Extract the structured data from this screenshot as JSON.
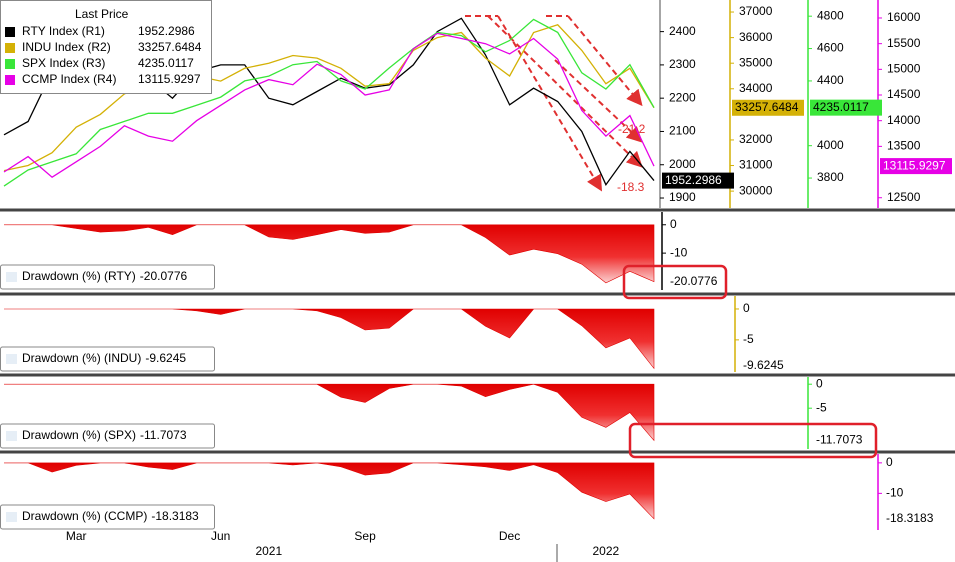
{
  "chart_data": [
    {
      "type": "line",
      "legend_title": "Last Price",
      "categories": [
        null,
        null,
        null,
        "Mar",
        null,
        null,
        null,
        null,
        null,
        "Jun",
        null,
        null,
        null,
        null,
        null,
        "Sep",
        null,
        null,
        null,
        null,
        null,
        "Dec",
        null,
        null,
        null,
        null,
        null,
        null
      ],
      "x_groups": [
        {
          "value": 11,
          "label": "2021"
        },
        {
          "value": 25,
          "label": "2022"
        }
      ],
      "series": [
        {
          "name": "RTY Index (R1)",
          "color": "#000000",
          "axis": "y",
          "values": [
            2090,
            2130,
            2280,
            2250,
            2220,
            2230,
            2260,
            2200,
            2280,
            2300,
            2300,
            2200,
            2180,
            2220,
            2260,
            2230,
            2240,
            2300,
            2400,
            2440,
            2330,
            2180,
            2230,
            2190,
            2100,
            1940,
            2040,
            1952.2986
          ]
        },
        {
          "name": "INDU Index (R2)",
          "color": "#d4b106",
          "axis": "y2",
          "values": [
            30800,
            31000,
            31500,
            32500,
            33000,
            33800,
            34200,
            34600,
            34500,
            34300,
            34800,
            35000,
            35300,
            35200,
            34800,
            34100,
            34200,
            35500,
            36000,
            36200,
            35200,
            34500,
            36200,
            36500,
            35500,
            34200,
            34800,
            33257.6484
          ]
        },
        {
          "name": "SPX Index (R3)",
          "color": "#39e639",
          "axis": "y3",
          "values": [
            3750,
            3850,
            3900,
            3950,
            4100,
            4150,
            4200,
            4200,
            4250,
            4300,
            4400,
            4430,
            4500,
            4520,
            4400,
            4350,
            4480,
            4600,
            4700,
            4680,
            4580,
            4650,
            4780,
            4700,
            4450,
            4350,
            4500,
            4235.0117
          ]
        },
        {
          "name": "CCMP Index (R4)",
          "color": "#e600e6",
          "axis": "y4",
          "values": [
            13000,
            13300,
            12900,
            13200,
            13500,
            13900,
            13700,
            13600,
            14000,
            14300,
            14600,
            14800,
            14700,
            15100,
            14900,
            14500,
            14600,
            15400,
            15700,
            15600,
            15500,
            15300,
            15600,
            15200,
            14200,
            13700,
            14100,
            13115.9297
          ]
        }
      ],
      "ylim": [
        1870,
        2495
      ],
      "yticks": [
        1900,
        2000,
        2100,
        2200,
        2300,
        2400
      ],
      "y2lim": [
        29340,
        37470
      ],
      "y2ticks": [
        30000,
        31000,
        32000,
        34000,
        35000,
        36000,
        37000
      ],
      "y3lim": [
        3615,
        4900
      ],
      "y3ticks": [
        3800,
        4000,
        4400,
        4600,
        4800
      ],
      "y4lim": [
        12300,
        16350
      ],
      "y4ticks": [
        12500,
        13500,
        14000,
        14500,
        15000,
        15500,
        16000
      ],
      "annotations": [
        "-21.2",
        "-18.3"
      ]
    },
    {
      "type": "area",
      "name": "Drawdown (%) (RTY)",
      "color": "#e00000",
      "axis_color": "#000000",
      "values": [
        0,
        0,
        0,
        -1.3,
        -2.6,
        -2.2,
        -0.9,
        -3.5,
        0,
        0,
        0,
        -4.3,
        -5.2,
        -3.5,
        -1.7,
        -3.0,
        -2.6,
        0,
        0,
        0,
        -4.5,
        -10.7,
        -8.6,
        -10.2,
        -13.9,
        -20.5,
        -16.4,
        -20.0776
      ],
      "ylim": [
        -23,
        4.5
      ],
      "yticks": [
        0,
        -10
      ]
    },
    {
      "type": "area",
      "name": "Drawdown (%) (INDU)",
      "color": "#e00000",
      "axis_color": "#d4b106",
      "values": [
        0,
        0,
        0,
        0,
        0,
        0,
        0,
        0,
        -0.3,
        -0.9,
        0,
        0,
        0,
        -0.3,
        -1.4,
        -3.4,
        -3.1,
        0,
        0,
        0,
        -2.8,
        -4.7,
        0,
        0,
        -2.7,
        -6.3,
        -4.7,
        -9.6245
      ],
      "ylim": [
        -10.2,
        2.1
      ],
      "yticks": [
        0,
        -5
      ]
    },
    {
      "type": "area",
      "name": "Drawdown (%) (SPX)",
      "color": "#e00000",
      "axis_color": "#39e639",
      "values": [
        0,
        0,
        0,
        0,
        0,
        0,
        0,
        0,
        0,
        0,
        0,
        0,
        0,
        0,
        -2.7,
        -3.8,
        -0.9,
        0,
        0,
        -0.4,
        -2.6,
        -1.1,
        0,
        -1.7,
        -6.9,
        -9.0,
        -5.9,
        -11.7073
      ],
      "ylim": [
        -13.5,
        1.5
      ],
      "yticks": [
        0,
        -5
      ]
    },
    {
      "type": "area",
      "name": "Drawdown (%) (CCMP)",
      "color": "#e00000",
      "axis_color": "#e600e6",
      "values": [
        0,
        0,
        -3.0,
        -0.8,
        0,
        0,
        -1.4,
        -2.2,
        0,
        0,
        0,
        0,
        -0.7,
        0,
        -1.3,
        -4.0,
        -3.3,
        0,
        0,
        -0.6,
        -1.3,
        -2.5,
        -0.6,
        -3.2,
        -9.6,
        -12.7,
        -10.2,
        -18.3183
      ],
      "ylim": [
        -22,
        2.9
      ],
      "yticks": [
        0,
        -10
      ]
    }
  ]
}
